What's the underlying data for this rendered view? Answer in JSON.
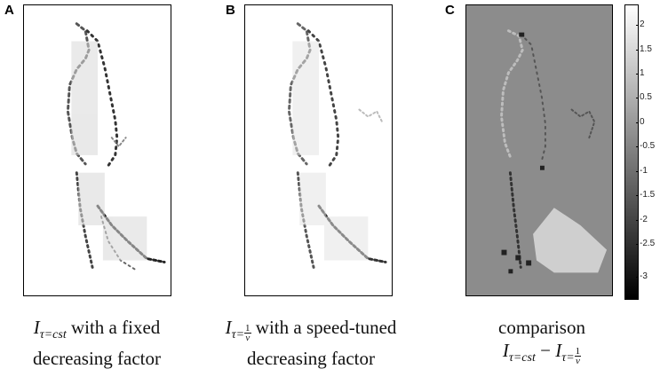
{
  "panels": [
    {
      "letter": "A",
      "caption_math": "I",
      "caption_sub": "τ=cst",
      "caption_rest": " with a fixed",
      "caption_line2": "decreasing factor"
    },
    {
      "letter": "B",
      "caption_math": "I",
      "caption_sub": "τ=",
      "caption_frac_num": "1",
      "caption_frac_den": "v",
      "caption_rest": " with a speed-tuned",
      "caption_line2": "decreasing factor"
    },
    {
      "letter": "C",
      "caption_line1": "comparison",
      "caption_math_a": "I",
      "caption_sub_a": "τ=cst",
      "caption_minus": " − ",
      "caption_math_b": "I",
      "caption_sub_b": "τ=",
      "caption_frac_num": "1",
      "caption_frac_den": "v"
    }
  ],
  "colorbar": {
    "ticks": [
      "2",
      "1.5",
      "1",
      "0.5",
      "0",
      "-0.5",
      "-1",
      "-1.5",
      "-2",
      "-2.5",
      "-3"
    ],
    "max_color": "#ffffff",
    "min_color": "#000000"
  }
}
